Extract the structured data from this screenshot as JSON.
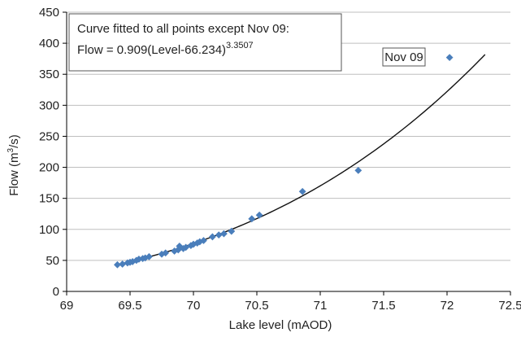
{
  "chart_data": {
    "type": "scatter",
    "xlabel": "Lake level (mAOD)",
    "ylabel_prefix": "Flow (m",
    "ylabel_sup": "3",
    "ylabel_suffix": "/s)",
    "xlim": [
      69,
      72.5
    ],
    "ylim": [
      0,
      450
    ],
    "xticks": [
      69,
      69.5,
      70,
      70.5,
      71,
      71.5,
      72,
      72.5
    ],
    "xtick_labels": [
      "69",
      "69.5",
      "70",
      "70.5",
      "71",
      "71.5",
      "72",
      "72.5"
    ],
    "yticks": [
      0,
      50,
      100,
      150,
      200,
      250,
      300,
      350,
      400,
      450
    ],
    "ytick_labels": [
      "0",
      "50",
      "100",
      "150",
      "200",
      "250",
      "300",
      "350",
      "400",
      "450"
    ],
    "grid": "horizontal",
    "colors": {
      "points": "#4a7ebb",
      "curve": "#111111",
      "grid": "#bfbfbf",
      "axis": "#000000"
    },
    "series": [
      {
        "marker": "diamond",
        "points": [
          [
            69.4,
            43
          ],
          [
            69.44,
            44
          ],
          [
            69.48,
            46
          ],
          [
            69.5,
            47
          ],
          [
            69.52,
            48
          ],
          [
            69.55,
            50
          ],
          [
            69.57,
            52
          ],
          [
            69.6,
            53
          ],
          [
            69.62,
            54
          ],
          [
            69.65,
            56
          ],
          [
            69.75,
            60
          ],
          [
            69.78,
            62
          ],
          [
            69.85,
            65
          ],
          [
            69.88,
            67
          ],
          [
            69.89,
            73
          ],
          [
            69.92,
            69
          ],
          [
            69.94,
            71
          ],
          [
            69.98,
            74
          ],
          [
            70.0,
            76
          ],
          [
            70.03,
            78
          ],
          [
            70.05,
            80
          ],
          [
            70.08,
            82
          ],
          [
            70.15,
            88
          ],
          [
            70.2,
            91
          ],
          [
            70.24,
            93
          ],
          [
            70.3,
            97
          ],
          [
            70.46,
            117
          ],
          [
            70.52,
            123
          ],
          [
            70.86,
            161
          ],
          [
            71.3,
            195
          ],
          [
            72.02,
            377
          ]
        ]
      }
    ],
    "fit": {
      "coefficient": 0.909,
      "offset": 66.234,
      "exponent": 3.3507,
      "x_range": [
        69.4,
        72.3
      ]
    },
    "annotation_box": {
      "line1": "Curve fitted to all points except Nov 09:",
      "line2_prefix": "Flow = 0.909(Level-66.234)",
      "line2_sup": "3.3507"
    },
    "point_label": {
      "text": "Nov 09",
      "x": 72.02,
      "y": 377
    }
  }
}
